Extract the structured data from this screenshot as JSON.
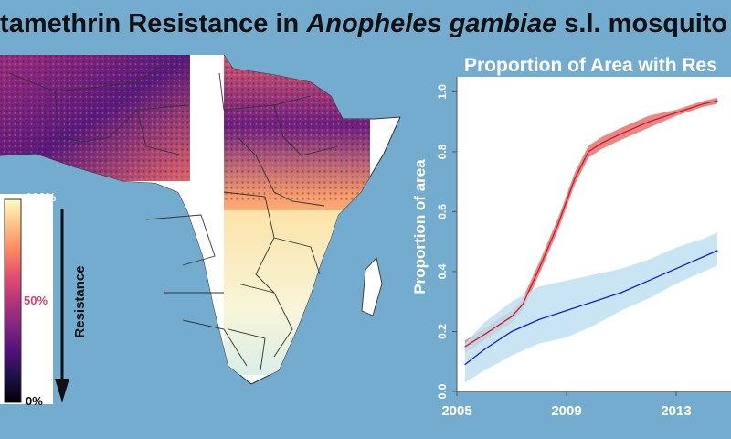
{
  "title": {
    "prefix": "ltamethrin Resistance in ",
    "species": "Anopheles gambiae",
    "suffix": " s.l. mosquito"
  },
  "legend": {
    "top_label": "100%",
    "mid_label": "50%",
    "bottom_label": "0%",
    "arrow_label": "Resistance",
    "colors": [
      "#fcfdbf",
      "#fec287",
      "#fb8761",
      "#e3506c",
      "#b5367a",
      "#822681",
      "#4f127b",
      "#1c1044",
      "#000004"
    ]
  },
  "map": {
    "region": "Africa",
    "land_color": "#ffffff",
    "border_color": "#333333",
    "resistance_high_color": "#4f127b",
    "resistance_low_color": "#fcfdbf"
  },
  "chart_data": {
    "type": "line",
    "title": "Proportion of Area with Res",
    "ylabel": "Proportion of area",
    "xlabel": "",
    "xlim": [
      2005,
      2015
    ],
    "ylim": [
      0,
      1.05
    ],
    "xticks": [
      2005,
      2009,
      2013
    ],
    "yticks": [
      0.0,
      0.2,
      0.4,
      0.6,
      0.8,
      1.0
    ],
    "grid": false,
    "series": [
      {
        "color": "#c0202a",
        "band_color": "#e8716e",
        "x": [
          2005.3,
          2006.0,
          2007.0,
          2007.4,
          2008.0,
          2008.7,
          2009.3,
          2009.8,
          2010.3,
          2011.0,
          2012.0,
          2013.0,
          2014.0,
          2014.5
        ],
        "y": [
          0.15,
          0.19,
          0.25,
          0.29,
          0.41,
          0.56,
          0.71,
          0.8,
          0.83,
          0.86,
          0.9,
          0.93,
          0.96,
          0.97
        ],
        "lower": [
          0.13,
          0.17,
          0.23,
          0.27,
          0.39,
          0.54,
          0.69,
          0.78,
          0.81,
          0.84,
          0.88,
          0.92,
          0.95,
          0.96
        ],
        "upper": [
          0.17,
          0.21,
          0.27,
          0.31,
          0.43,
          0.58,
          0.73,
          0.82,
          0.85,
          0.88,
          0.92,
          0.94,
          0.97,
          0.98
        ]
      },
      {
        "color": "#1a1ad0",
        "band_color": "#bfe1f2",
        "x": [
          2005.3,
          2006.0,
          2007.0,
          2008.0,
          2009.0,
          2010.0,
          2011.0,
          2012.0,
          2013.0,
          2014.0,
          2014.5
        ],
        "y": [
          0.09,
          0.14,
          0.2,
          0.24,
          0.27,
          0.3,
          0.33,
          0.37,
          0.41,
          0.45,
          0.47
        ],
        "lower": [
          0.03,
          0.07,
          0.12,
          0.16,
          0.18,
          0.22,
          0.27,
          0.31,
          0.36,
          0.4,
          0.42
        ],
        "upper": [
          0.16,
          0.23,
          0.3,
          0.35,
          0.37,
          0.39,
          0.41,
          0.44,
          0.48,
          0.51,
          0.53
        ]
      }
    ]
  }
}
